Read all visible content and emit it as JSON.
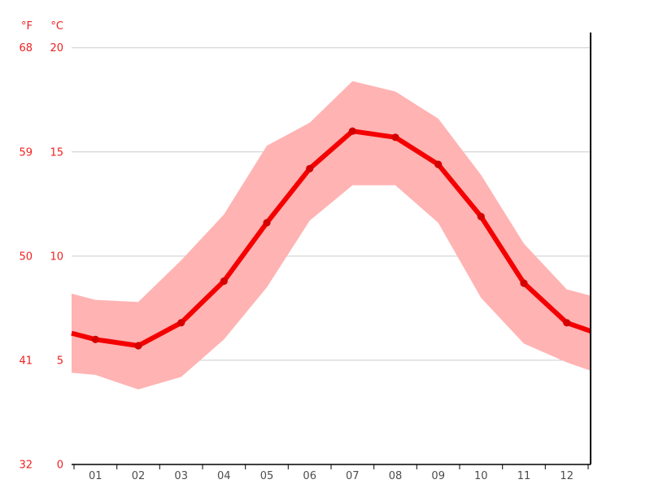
{
  "chart_data": {
    "type": "line",
    "title": "",
    "description": "Climate graph: monthly mean temperature line with min–max band",
    "categories": [
      "01",
      "02",
      "03",
      "04",
      "05",
      "06",
      "07",
      "08",
      "09",
      "10",
      "11",
      "12"
    ],
    "series": [
      {
        "name": "mean",
        "values": [
          6.0,
          5.7,
          6.8,
          8.8,
          11.6,
          14.2,
          16.0,
          15.7,
          14.4,
          11.9,
          8.7,
          6.8
        ],
        "edge_left": 6.3,
        "edge_right": 6.4
      },
      {
        "name": "max",
        "values": [
          7.9,
          7.8,
          9.8,
          12.0,
          15.3,
          16.4,
          18.4,
          17.9,
          16.6,
          13.9,
          10.6,
          8.4
        ],
        "edge_left": 8.2,
        "edge_right": 8.1
      },
      {
        "name": "min",
        "values": [
          4.3,
          3.6,
          4.2,
          6.0,
          8.5,
          11.7,
          13.4,
          13.4,
          11.6,
          8.0,
          5.8,
          4.9
        ],
        "edge_left": 4.4,
        "edge_right": 4.5
      }
    ],
    "y_axis": {
      "unit_left": "°F",
      "unit_right": "°C",
      "ticks": [
        {
          "f": "32",
          "c": "0"
        },
        {
          "f": "41",
          "c": "5"
        },
        {
          "f": "50",
          "c": "10"
        },
        {
          "f": "59",
          "c": "15"
        },
        {
          "f": "68",
          "c": "20"
        }
      ],
      "range_c": [
        0,
        20.8
      ]
    },
    "x_axis": {
      "grid": false,
      "tick_count": 13
    },
    "legend": {
      "visible": false
    },
    "colors": {
      "line": "#f50000",
      "marker": "#d40000",
      "band": "#ffb3b3",
      "grid": "#cccccc",
      "axis": "#000000",
      "label_red": "#ee2222",
      "label_gray": "#4d4d4d"
    }
  }
}
